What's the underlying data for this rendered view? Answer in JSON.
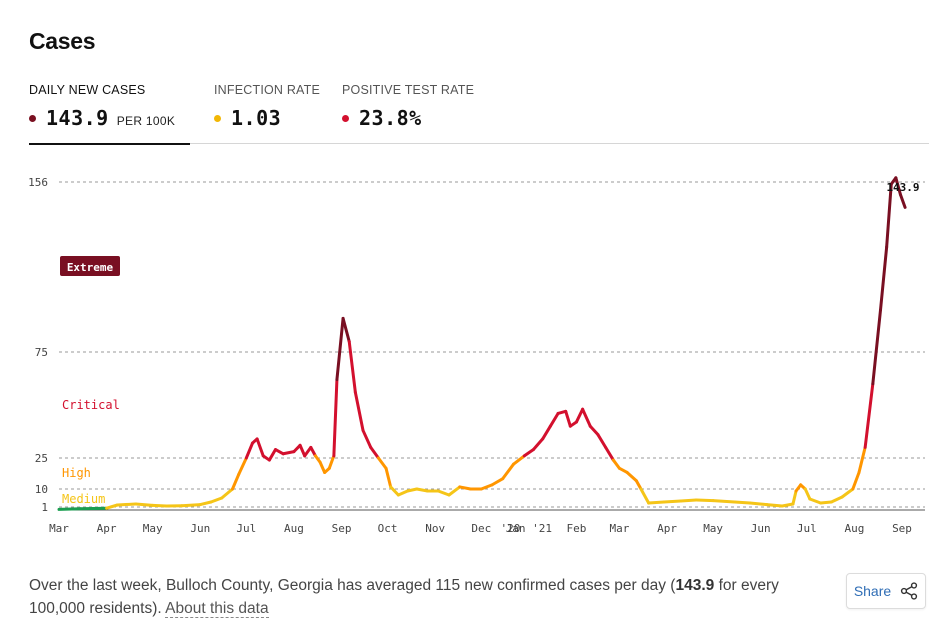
{
  "header": {
    "title": "Cases"
  },
  "tabs": [
    {
      "label": "DAILY NEW CASES",
      "value": "143.9",
      "unit": "PER 100K",
      "color": "#7a1021"
    },
    {
      "label": "INFECTION RATE",
      "value": "1.03",
      "unit": "",
      "color": "#f2b705"
    },
    {
      "label": "POSITIVE TEST RATE",
      "value": "23.8%",
      "unit": "",
      "color": "#d3102e"
    }
  ],
  "colors": {
    "low": "#1a9e50",
    "medium": "#f5c518",
    "high": "#ff9600",
    "critical": "#d3102e",
    "extreme": "#790f22"
  },
  "chart_data": {
    "type": "line",
    "series_name": "Daily new cases per 100K",
    "yticks": [
      1,
      10,
      25,
      75,
      156
    ],
    "ylim": [
      0,
      156
    ],
    "x_labels": [
      "Mar",
      "Apr",
      "May",
      "Jun",
      "Jul",
      "Aug",
      "Sep",
      "Oct",
      "Nov",
      "Dec",
      "'20",
      "Jan '21",
      "Feb",
      "Mar",
      "Apr",
      "May",
      "Jun",
      "Jul",
      "Aug",
      "Sep"
    ],
    "x_label_dates": [
      "2020-03-01",
      "2020-04-01",
      "2020-05-01",
      "2020-06-01",
      "2020-07-01",
      "2020-08-01",
      "2020-09-01",
      "2020-10-01",
      "2020-11-01",
      "2020-12-01",
      "2020-12-20",
      "2021-01-01",
      "2021-02-01",
      "2021-03-01",
      "2021-04-01",
      "2021-05-01",
      "2021-06-01",
      "2021-07-01",
      "2021-08-01",
      "2021-09-01"
    ],
    "x_start": "2020-03-01",
    "x_end": "2021-09-01",
    "zones": [
      {
        "label": "Extreme",
        "min": 75
      },
      {
        "label": "Critical",
        "min": 25
      },
      {
        "label": "High",
        "min": 10
      },
      {
        "label": "Medium",
        "min": 1
      }
    ],
    "last_value_label": "143.9",
    "points": [
      [
        "2020-03-01",
        0.2
      ],
      [
        "2020-03-15",
        0.4
      ],
      [
        "2020-04-01",
        0.6
      ],
      [
        "2020-04-08",
        2.0
      ],
      [
        "2020-04-20",
        2.5
      ],
      [
        "2020-05-01",
        1.8
      ],
      [
        "2020-05-10",
        1.5
      ],
      [
        "2020-05-20",
        1.6
      ],
      [
        "2020-06-01",
        2.2
      ],
      [
        "2020-06-08",
        3.5
      ],
      [
        "2020-06-15",
        5.5
      ],
      [
        "2020-06-22",
        10
      ],
      [
        "2020-06-26",
        17
      ],
      [
        "2020-07-01",
        25
      ],
      [
        "2020-07-05",
        32
      ],
      [
        "2020-07-08",
        34
      ],
      [
        "2020-07-12",
        26
      ],
      [
        "2020-07-16",
        24
      ],
      [
        "2020-07-20",
        29
      ],
      [
        "2020-07-25",
        27
      ],
      [
        "2020-08-01",
        28
      ],
      [
        "2020-08-05",
        31
      ],
      [
        "2020-08-08",
        26
      ],
      [
        "2020-08-12",
        30
      ],
      [
        "2020-08-15",
        26
      ],
      [
        "2020-08-18",
        23
      ],
      [
        "2020-08-21",
        18
      ],
      [
        "2020-08-24",
        20
      ],
      [
        "2020-08-27",
        26
      ],
      [
        "2020-08-29",
        62
      ],
      [
        "2020-09-02",
        91
      ],
      [
        "2020-09-06",
        80
      ],
      [
        "2020-09-10",
        56
      ],
      [
        "2020-09-15",
        38
      ],
      [
        "2020-09-20",
        30
      ],
      [
        "2020-09-25",
        25
      ],
      [
        "2020-09-30",
        20
      ],
      [
        "2020-10-03",
        11
      ],
      [
        "2020-10-08",
        7
      ],
      [
        "2020-10-14",
        9
      ],
      [
        "2020-10-20",
        10
      ],
      [
        "2020-10-27",
        9
      ],
      [
        "2020-11-03",
        9
      ],
      [
        "2020-11-10",
        7
      ],
      [
        "2020-11-17",
        11
      ],
      [
        "2020-11-24",
        10
      ],
      [
        "2020-12-01",
        10
      ],
      [
        "2020-12-08",
        12
      ],
      [
        "2020-12-15",
        15
      ],
      [
        "2020-12-22",
        22
      ],
      [
        "2020-12-29",
        26
      ],
      [
        "2021-01-04",
        29
      ],
      [
        "2021-01-10",
        34
      ],
      [
        "2021-01-15",
        40
      ],
      [
        "2021-01-20",
        46
      ],
      [
        "2021-01-25",
        47
      ],
      [
        "2021-01-28",
        40
      ],
      [
        "2021-02-01",
        42
      ],
      [
        "2021-02-05",
        48
      ],
      [
        "2021-02-10",
        40
      ],
      [
        "2021-02-15",
        36
      ],
      [
        "2021-02-20",
        30
      ],
      [
        "2021-02-25",
        24
      ],
      [
        "2021-03-01",
        20
      ],
      [
        "2021-03-06",
        18
      ],
      [
        "2021-03-12",
        14
      ],
      [
        "2021-03-15",
        10
      ],
      [
        "2021-03-20",
        3
      ],
      [
        "2021-03-30",
        3.5
      ],
      [
        "2021-04-10",
        4
      ],
      [
        "2021-04-20",
        4.5
      ],
      [
        "2021-05-01",
        4.2
      ],
      [
        "2021-05-15",
        3.5
      ],
      [
        "2021-05-25",
        3.0
      ],
      [
        "2021-06-05",
        2.2
      ],
      [
        "2021-06-15",
        1.5
      ],
      [
        "2021-06-22",
        2.5
      ],
      [
        "2021-06-24",
        9
      ],
      [
        "2021-06-27",
        12
      ],
      [
        "2021-06-30",
        10
      ],
      [
        "2021-07-03",
        5
      ],
      [
        "2021-07-10",
        3
      ],
      [
        "2021-07-17",
        3.5
      ],
      [
        "2021-07-24",
        6
      ],
      [
        "2021-07-31",
        10
      ],
      [
        "2021-08-04",
        18
      ],
      [
        "2021-08-08",
        30
      ],
      [
        "2021-08-13",
        60
      ],
      [
        "2021-08-18",
        95
      ],
      [
        "2021-08-22",
        125
      ],
      [
        "2021-08-25",
        155
      ],
      [
        "2021-08-28",
        158
      ],
      [
        "2021-08-31",
        150
      ],
      [
        "2021-09-03",
        143.9
      ]
    ]
  },
  "footer": {
    "text_before": "Over the last week, Bulloch County, Georgia has averaged 115 new confirmed cases per day (",
    "bold": "143.9",
    "text_after": " for every 100,000 residents). ",
    "about_link": "About this data"
  },
  "share": {
    "label": "Share"
  }
}
